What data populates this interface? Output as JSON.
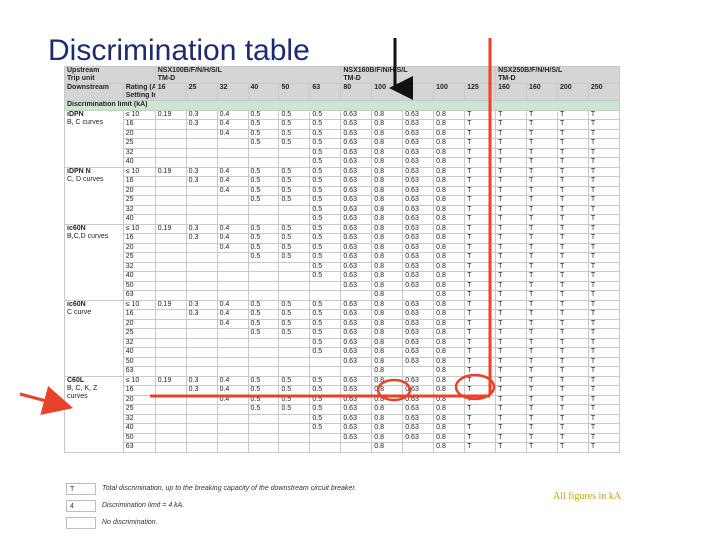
{
  "title": "Discrimination table",
  "header": {
    "upstream_label": "Upstream",
    "trip_unit_label": "Trip unit",
    "groups": [
      {
        "name": "NSX100B/F/N/H/S/L",
        "trip": "TM-D"
      },
      {
        "name": "NSX160B/F/N/H/S/L",
        "trip": "TM-D"
      },
      {
        "name": "NSX250B/F/N/H/S/L",
        "trip": "TM-D"
      }
    ],
    "downstream_label": "Downstream",
    "rating_label": "Rating (A)",
    "setting_label": "Setting Ir",
    "ratings": [
      "16",
      "25",
      "32",
      "40",
      "50",
      "63",
      "80",
      "100",
      "80",
      "100",
      "125",
      "160",
      "160",
      "200",
      "250"
    ],
    "limit_label": "Discrimination limit (kA)"
  },
  "blocks": [
    {
      "name_lines": [
        "iDPN",
        "B, C curves"
      ],
      "rows": [
        [
          "≤ 10",
          "0.19",
          "0.3",
          "0.4",
          "0.5",
          "0.5",
          "0.5",
          "0.63",
          "0.8",
          "0.63",
          "0.8",
          "T",
          "T",
          "T",
          "T",
          "T"
        ],
        [
          "16",
          "",
          "0.3",
          "0.4",
          "0.5",
          "0.5",
          "0.5",
          "0.63",
          "0.8",
          "0.63",
          "0.8",
          "T",
          "T",
          "T",
          "T",
          "T"
        ],
        [
          "20",
          "",
          "",
          "0.4",
          "0.5",
          "0.5",
          "0.5",
          "0.63",
          "0.8",
          "0.63",
          "0.8",
          "T",
          "T",
          "T",
          "T",
          "T"
        ],
        [
          "25",
          "",
          "",
          "",
          "0.5",
          "0.5",
          "0.5",
          "0.63",
          "0.8",
          "0.63",
          "0.8",
          "T",
          "T",
          "T",
          "T",
          "T"
        ],
        [
          "32",
          "",
          "",
          "",
          "",
          "",
          "0.5",
          "0.63",
          "0.8",
          "0.63",
          "0.8",
          "T",
          "T",
          "T",
          "T",
          "T"
        ],
        [
          "40",
          "",
          "",
          "",
          "",
          "",
          "0.5",
          "0.63",
          "0.8",
          "0.63",
          "0.8",
          "T",
          "T",
          "T",
          "T",
          "T"
        ]
      ]
    },
    {
      "name_lines": [
        "iDPN N",
        "C, D curves"
      ],
      "rows": [
        [
          "≤ 10",
          "0.19",
          "0.3",
          "0.4",
          "0.5",
          "0.5",
          "0.5",
          "0.63",
          "0.8",
          "0.63",
          "0.8",
          "T",
          "T",
          "T",
          "T",
          "T"
        ],
        [
          "16",
          "",
          "0.3",
          "0.4",
          "0.5",
          "0.5",
          "0.5",
          "0.63",
          "0.8",
          "0.63",
          "0.8",
          "T",
          "T",
          "T",
          "T",
          "T"
        ],
        [
          "20",
          "",
          "",
          "0.4",
          "0.5",
          "0.5",
          "0.5",
          "0.63",
          "0.8",
          "0.63",
          "0.8",
          "T",
          "T",
          "T",
          "T",
          "T"
        ],
        [
          "25",
          "",
          "",
          "",
          "0.5",
          "0.5",
          "0.5",
          "0.63",
          "0.8",
          "0.63",
          "0.8",
          "T",
          "T",
          "T",
          "T",
          "T"
        ],
        [
          "32",
          "",
          "",
          "",
          "",
          "",
          "0.5",
          "0.63",
          "0.8",
          "0.63",
          "0.8",
          "T",
          "T",
          "T",
          "T",
          "T"
        ],
        [
          "40",
          "",
          "",
          "",
          "",
          "",
          "0.5",
          "0.63",
          "0.8",
          "0.63",
          "0.8",
          "T",
          "T",
          "T",
          "T",
          "T"
        ]
      ]
    },
    {
      "name_lines": [
        "ic60N",
        "B,C,D curves"
      ],
      "rows": [
        [
          "≤ 10",
          "0.19",
          "0.3",
          "0.4",
          "0.5",
          "0.5",
          "0.5",
          "0.63",
          "0.8",
          "0.63",
          "0.8",
          "T",
          "T",
          "T",
          "T",
          "T"
        ],
        [
          "16",
          "",
          "0.3",
          "0.4",
          "0.5",
          "0.5",
          "0.5",
          "0.63",
          "0.8",
          "0.63",
          "0.8",
          "T",
          "T",
          "T",
          "T",
          "T"
        ],
        [
          "20",
          "",
          "",
          "0.4",
          "0.5",
          "0.5",
          "0.5",
          "0.63",
          "0.8",
          "0.63",
          "0.8",
          "T",
          "T",
          "T",
          "T",
          "T"
        ],
        [
          "25",
          "",
          "",
          "",
          "0.5",
          "0.5",
          "0.5",
          "0.63",
          "0.8",
          "0.63",
          "0.8",
          "T",
          "T",
          "T",
          "T",
          "T"
        ],
        [
          "32",
          "",
          "",
          "",
          "",
          "",
          "0.5",
          "0.63",
          "0.8",
          "0.63",
          "0.8",
          "T",
          "T",
          "T",
          "T",
          "T"
        ],
        [
          "40",
          "",
          "",
          "",
          "",
          "",
          "0.5",
          "0.63",
          "0.8",
          "0.63",
          "0.8",
          "T",
          "T",
          "T",
          "T",
          "T"
        ],
        [
          "50",
          "",
          "",
          "",
          "",
          "",
          "",
          "0.63",
          "0.8",
          "0.63",
          "0.8",
          "T",
          "T",
          "T",
          "T",
          "T"
        ],
        [
          "63",
          "",
          "",
          "",
          "",
          "",
          "",
          "",
          "0.8",
          "",
          "0.8",
          "T",
          "T",
          "T",
          "T",
          "T"
        ]
      ]
    },
    {
      "name_lines": [
        "ic60N",
        "C curve"
      ],
      "rows": [
        [
          "≤ 10",
          "0.19",
          "0.3",
          "0.4",
          "0.5",
          "0.5",
          "0.5",
          "0.63",
          "0.8",
          "0.63",
          "0.8",
          "T",
          "T",
          "T",
          "T",
          "T"
        ],
        [
          "16",
          "",
          "0.3",
          "0.4",
          "0.5",
          "0.5",
          "0.5",
          "0.63",
          "0.8",
          "0.63",
          "0.8",
          "T",
          "T",
          "T",
          "T",
          "T"
        ],
        [
          "20",
          "",
          "",
          "0.4",
          "0.5",
          "0.5",
          "0.5",
          "0.63",
          "0.8",
          "0.63",
          "0.8",
          "T",
          "T",
          "T",
          "T",
          "T"
        ],
        [
          "25",
          "",
          "",
          "",
          "0.5",
          "0.5",
          "0.5",
          "0.63",
          "0.8",
          "0.63",
          "0.8",
          "T",
          "T",
          "T",
          "T",
          "T"
        ],
        [
          "32",
          "",
          "",
          "",
          "",
          "",
          "0.5",
          "0.63",
          "0.8",
          "0.63",
          "0.8",
          "T",
          "T",
          "T",
          "T",
          "T"
        ],
        [
          "40",
          "",
          "",
          "",
          "",
          "",
          "0.5",
          "0.63",
          "0.8",
          "0.63",
          "0.8",
          "T",
          "T",
          "T",
          "T",
          "T"
        ],
        [
          "50",
          "",
          "",
          "",
          "",
          "",
          "",
          "0.63",
          "0.8",
          "0.63",
          "0.8",
          "T",
          "T",
          "T",
          "T",
          "T"
        ],
        [
          "63",
          "",
          "",
          "",
          "",
          "",
          "",
          "",
          "0.8",
          "",
          "0.8",
          "T",
          "T",
          "T",
          "T",
          "T"
        ]
      ]
    },
    {
      "name_lines": [
        "C60L",
        "B, C, K, Z",
        "curves"
      ],
      "rows": [
        [
          "≤ 10",
          "0.19",
          "0.3",
          "0.4",
          "0.5",
          "0.5",
          "0.5",
          "0.63",
          "0.8",
          "0.63",
          "0.8",
          "T",
          "T",
          "T",
          "T",
          "T"
        ],
        [
          "16",
          "",
          "0.3",
          "0.4",
          "0.5",
          "0.5",
          "0.5",
          "0.63",
          "0.8",
          "0.63",
          "0.8",
          "T",
          "T",
          "T",
          "T",
          "T"
        ],
        [
          "20",
          "",
          "",
          "0.4",
          "0.5",
          "0.5",
          "0.5",
          "0.63",
          "0.8",
          "0.63",
          "0.8",
          "T",
          "T",
          "T",
          "T",
          "T"
        ],
        [
          "25",
          "",
          "",
          "",
          "0.5",
          "0.5",
          "0.5",
          "0.63",
          "0.8",
          "0.63",
          "0.8",
          "T",
          "T",
          "T",
          "T",
          "T"
        ],
        [
          "32",
          "",
          "",
          "",
          "",
          "",
          "0.5",
          "0.63",
          "0.8",
          "0.63",
          "0.8",
          "T",
          "T",
          "T",
          "T",
          "T"
        ],
        [
          "40",
          "",
          "",
          "",
          "",
          "",
          "0.5",
          "0.63",
          "0.8",
          "0.63",
          "0.8",
          "T",
          "T",
          "T",
          "T",
          "T"
        ],
        [
          "50",
          "",
          "",
          "",
          "",
          "",
          "",
          "0.63",
          "0.8",
          "0.63",
          "0.8",
          "T",
          "T",
          "T",
          "T",
          "T"
        ],
        [
          "63",
          "",
          "",
          "",
          "",
          "",
          "",
          "",
          "0.8",
          "",
          "0.8",
          "T",
          "T",
          "T",
          "T",
          "T"
        ]
      ]
    }
  ],
  "legend": [
    {
      "code": "T",
      "text": "Total discrimination, up to the breaking capacity of the downstream circuit breaker."
    },
    {
      "code": "4",
      "text": "Discrimination limit = 4 kA."
    },
    {
      "code": "",
      "text": "No discrimination."
    }
  ],
  "note": "All figures in kA",
  "colors": {
    "title": "#1e2a6e",
    "annotation": "#e8432a",
    "arrow": "#111111",
    "note": "#c8a020",
    "limit_row": "#cfe5d4"
  }
}
